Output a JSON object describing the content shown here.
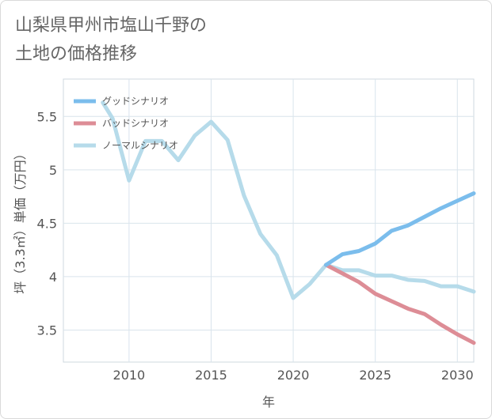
{
  "page": {
    "title": "山梨県甲州市塩山千野の\n土地の価格推移"
  },
  "chart_data": {
    "type": "line",
    "title": "山梨県甲州市塩山千野の土地の価格推移",
    "xlabel": "年",
    "ylabel": "坪（3.3㎡）単価（万円）",
    "xlim": [
      2006,
      2031
    ],
    "ylim": [
      3.2,
      5.85
    ],
    "x_ticks": [
      2010,
      2015,
      2020,
      2025,
      2030
    ],
    "y_ticks": [
      3.5,
      4,
      4.5,
      5,
      5.5
    ],
    "x_tick_labels": [
      "2010",
      "2015",
      "2020",
      "2025",
      "2030"
    ],
    "y_tick_labels": [
      "3.5",
      "4",
      "4.5",
      "5",
      "5.5"
    ],
    "grid": true,
    "legend_position": "top-left",
    "series": [
      {
        "name": "グッドシナリオ",
        "color": "#7bbdec",
        "x": [
          2022,
          2023,
          2024,
          2025,
          2026,
          2027,
          2028,
          2029,
          2030,
          2031
        ],
        "y": [
          4.11,
          4.21,
          4.24,
          4.31,
          4.43,
          4.48,
          4.56,
          4.64,
          4.71,
          4.78
        ]
      },
      {
        "name": "バッドシナリオ",
        "color": "#dd8d96",
        "x": [
          2022,
          2023,
          2024,
          2025,
          2026,
          2027,
          2028,
          2029,
          2030,
          2031
        ],
        "y": [
          4.11,
          4.03,
          3.95,
          3.84,
          3.77,
          3.7,
          3.65,
          3.55,
          3.46,
          3.38
        ]
      },
      {
        "name": "ノーマルシナリオ",
        "color": "#b6dbea",
        "x": [
          2008.4,
          2009,
          2010,
          2011,
          2012,
          2013,
          2014,
          2015,
          2016,
          2017,
          2018,
          2019,
          2020,
          2021,
          2022,
          2023,
          2024,
          2025,
          2026,
          2027,
          2028,
          2029,
          2030,
          2031
        ],
        "y": [
          5.63,
          5.48,
          4.9,
          5.27,
          5.27,
          5.09,
          5.32,
          5.45,
          5.28,
          4.76,
          4.4,
          4.2,
          3.8,
          3.93,
          4.11,
          4.06,
          4.06,
          4.01,
          4.01,
          3.97,
          3.96,
          3.91,
          3.91,
          3.86
        ]
      }
    ]
  }
}
